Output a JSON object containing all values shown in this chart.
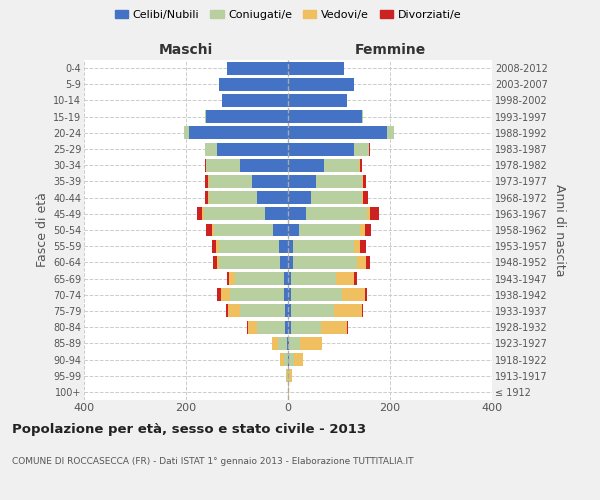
{
  "age_groups": [
    "100+",
    "95-99",
    "90-94",
    "85-89",
    "80-84",
    "75-79",
    "70-74",
    "65-69",
    "60-64",
    "55-59",
    "50-54",
    "45-49",
    "40-44",
    "35-39",
    "30-34",
    "25-29",
    "20-24",
    "15-19",
    "10-14",
    "5-9",
    "0-4"
  ],
  "birth_years": [
    "≤ 1912",
    "1913-1917",
    "1918-1922",
    "1923-1927",
    "1928-1932",
    "1933-1937",
    "1938-1942",
    "1943-1947",
    "1948-1952",
    "1953-1957",
    "1958-1962",
    "1963-1967",
    "1968-1972",
    "1973-1977",
    "1978-1982",
    "1983-1987",
    "1988-1992",
    "1993-1997",
    "1998-2002",
    "2003-2007",
    "2008-2012"
  ],
  "colors": {
    "celibi": "#4472c4",
    "coniugati": "#b8cfa0",
    "vedovi": "#f0c060",
    "divorziati": "#cc2222"
  },
  "maschi": {
    "celibi": [
      0,
      0,
      0,
      2,
      5,
      5,
      8,
      8,
      15,
      18,
      30,
      45,
      60,
      70,
      95,
      140,
      195,
      160,
      130,
      135,
      120
    ],
    "coniugati": [
      0,
      2,
      8,
      18,
      55,
      90,
      105,
      95,
      120,
      118,
      115,
      120,
      95,
      85,
      65,
      22,
      8,
      2,
      0,
      0,
      0
    ],
    "vedovi": [
      0,
      2,
      8,
      12,
      18,
      22,
      18,
      12,
      5,
      5,
      5,
      4,
      2,
      2,
      1,
      1,
      0,
      0,
      0,
      0,
      0
    ],
    "divorziati": [
      0,
      0,
      0,
      0,
      2,
      5,
      8,
      5,
      8,
      8,
      10,
      10,
      5,
      5,
      2,
      0,
      0,
      0,
      0,
      0,
      0
    ]
  },
  "femmine": {
    "celibi": [
      0,
      0,
      2,
      2,
      5,
      5,
      5,
      5,
      10,
      10,
      22,
      35,
      45,
      55,
      70,
      130,
      195,
      145,
      115,
      130,
      110
    ],
    "coniugati": [
      0,
      2,
      10,
      22,
      60,
      85,
      100,
      90,
      125,
      120,
      120,
      120,
      100,
      90,
      70,
      28,
      12,
      2,
      0,
      0,
      0
    ],
    "vedovi": [
      1,
      5,
      18,
      42,
      50,
      55,
      45,
      35,
      18,
      12,
      8,
      5,
      3,
      2,
      2,
      1,
      0,
      0,
      0,
      0,
      0
    ],
    "divorziati": [
      0,
      0,
      0,
      0,
      2,
      2,
      5,
      5,
      8,
      10,
      12,
      18,
      8,
      5,
      3,
      2,
      0,
      0,
      0,
      0,
      0
    ]
  },
  "title": "Popolazione per età, sesso e stato civile - 2013",
  "subtitle": "COMUNE DI ROCCASECCA (FR) - Dati ISTAT 1° gennaio 2013 - Elaborazione TUTTITALIA.IT",
  "ylabel_left": "Fasce di età",
  "ylabel_right": "Anni di nascita",
  "xlim": 400,
  "background_color": "#f0f0f0",
  "plot_background": "#ffffff",
  "grid_color": "#cccccc"
}
